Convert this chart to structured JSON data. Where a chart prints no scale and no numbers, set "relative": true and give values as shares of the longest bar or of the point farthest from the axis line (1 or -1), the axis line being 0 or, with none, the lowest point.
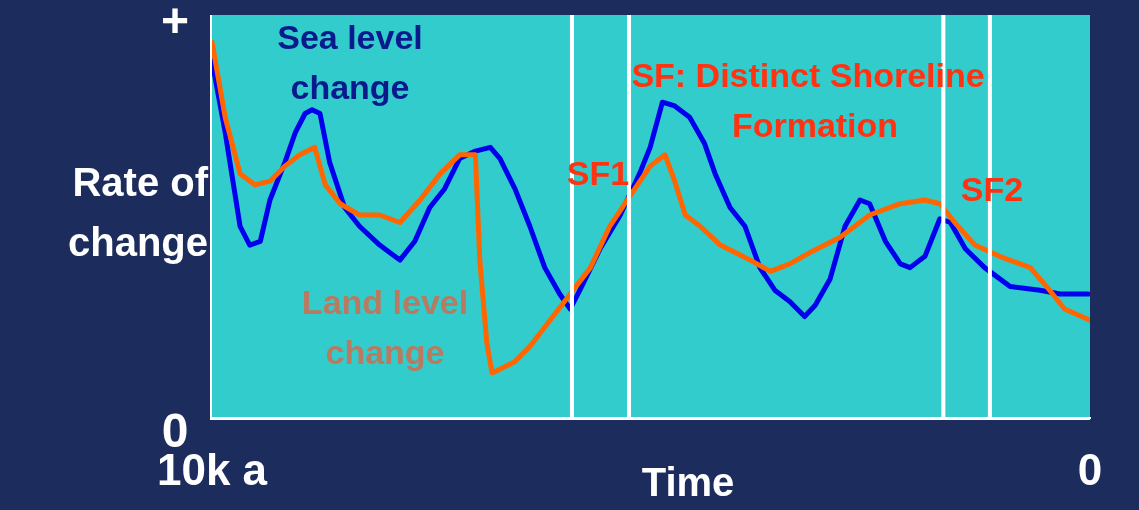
{
  "chart_data": {
    "type": "line",
    "xlabel": "Time",
    "ylabel": "Rate of change",
    "annotations": [
      "+",
      "0",
      "SF: Distinct Shoreline Formation",
      "SF1",
      "SF2"
    ],
    "relative": true,
    "xlim": [
      10,
      0
    ],
    "xticks": [
      {
        "value": 10,
        "label": "10k a"
      },
      0
    ],
    "ref_lines": [
      {
        "axis": "x",
        "value": 5.9,
        "color": "#ffffff"
      },
      {
        "axis": "x",
        "value": 5.25,
        "color": "#ffffff"
      },
      {
        "axis": "x",
        "value": 1.67,
        "color": "#ffffff"
      },
      {
        "axis": "x",
        "value": 1.14,
        "color": "#ffffff"
      }
    ],
    "series": [
      {
        "name": "Land level change",
        "color": "#ff6600",
        "x": [
          10,
          9.85,
          9.68,
          9.51,
          9.34,
          9.17,
          9.0,
          8.83,
          8.71,
          8.54,
          8.32,
          8.09,
          7.86,
          7.63,
          7.4,
          7.18,
          7.0,
          6.95,
          6.87,
          6.81,
          6.72,
          6.55,
          6.38,
          6.15,
          5.92,
          5.69,
          5.47,
          5.24,
          5.01,
          4.84,
          4.73,
          4.61,
          4.44,
          4.21,
          3.87,
          3.64,
          3.42,
          3.19,
          2.85,
          2.51,
          2.16,
          1.88,
          1.71,
          1.54,
          1.31,
          1.03,
          0.68,
          0.46,
          0.29,
          0
        ],
        "values": [
          1,
          0.8,
          0.65,
          0.62,
          0.63,
          0.67,
          0.7,
          0.72,
          0.62,
          0.57,
          0.54,
          0.54,
          0.52,
          0.58,
          0.65,
          0.7,
          0.7,
          0.42,
          0.2,
          0.12,
          0.13,
          0.15,
          0.19,
          0.26,
          0.33,
          0.4,
          0.51,
          0.59,
          0.67,
          0.7,
          0.63,
          0.54,
          0.51,
          0.46,
          0.42,
          0.39,
          0.41,
          0.44,
          0.48,
          0.54,
          0.57,
          0.58,
          0.57,
          0.52,
          0.46,
          0.43,
          0.4,
          0.34,
          0.29,
          0.26
        ]
      },
      {
        "name": "Sea level change",
        "color": "#0000ee",
        "x": [
          10,
          9.85,
          9.68,
          9.57,
          9.45,
          9.34,
          9.17,
          9.05,
          8.94,
          8.86,
          8.77,
          8.66,
          8.49,
          8.32,
          8.09,
          7.86,
          7.69,
          7.52,
          7.35,
          7.18,
          7.0,
          6.83,
          6.72,
          6.55,
          6.38,
          6.21,
          6.04,
          5.92,
          5.81,
          5.58,
          5.35,
          5.13,
          5.01,
          4.87,
          4.73,
          4.56,
          4.39,
          4.27,
          4.1,
          3.93,
          3.76,
          3.59,
          3.42,
          3.25,
          3.13,
          2.96,
          2.79,
          2.62,
          2.51,
          2.33,
          2.16,
          2.05,
          1.88,
          1.71,
          1.59,
          1.42,
          1.2,
          0.91,
          0.57,
          0.34,
          0.02
        ],
        "values": [
          0.95,
          0.76,
          0.51,
          0.46,
          0.47,
          0.58,
          0.68,
          0.76,
          0.81,
          0.82,
          0.81,
          0.68,
          0.56,
          0.51,
          0.46,
          0.42,
          0.47,
          0.56,
          0.61,
          0.69,
          0.71,
          0.72,
          0.69,
          0.61,
          0.51,
          0.4,
          0.33,
          0.29,
          0.34,
          0.45,
          0.54,
          0.65,
          0.72,
          0.84,
          0.83,
          0.8,
          0.73,
          0.65,
          0.56,
          0.51,
          0.4,
          0.34,
          0.31,
          0.27,
          0.3,
          0.37,
          0.51,
          0.58,
          0.57,
          0.47,
          0.41,
          0.4,
          0.43,
          0.53,
          0.52,
          0.45,
          0.4,
          0.35,
          0.34,
          0.33,
          0.33
        ]
      }
    ]
  }
}
